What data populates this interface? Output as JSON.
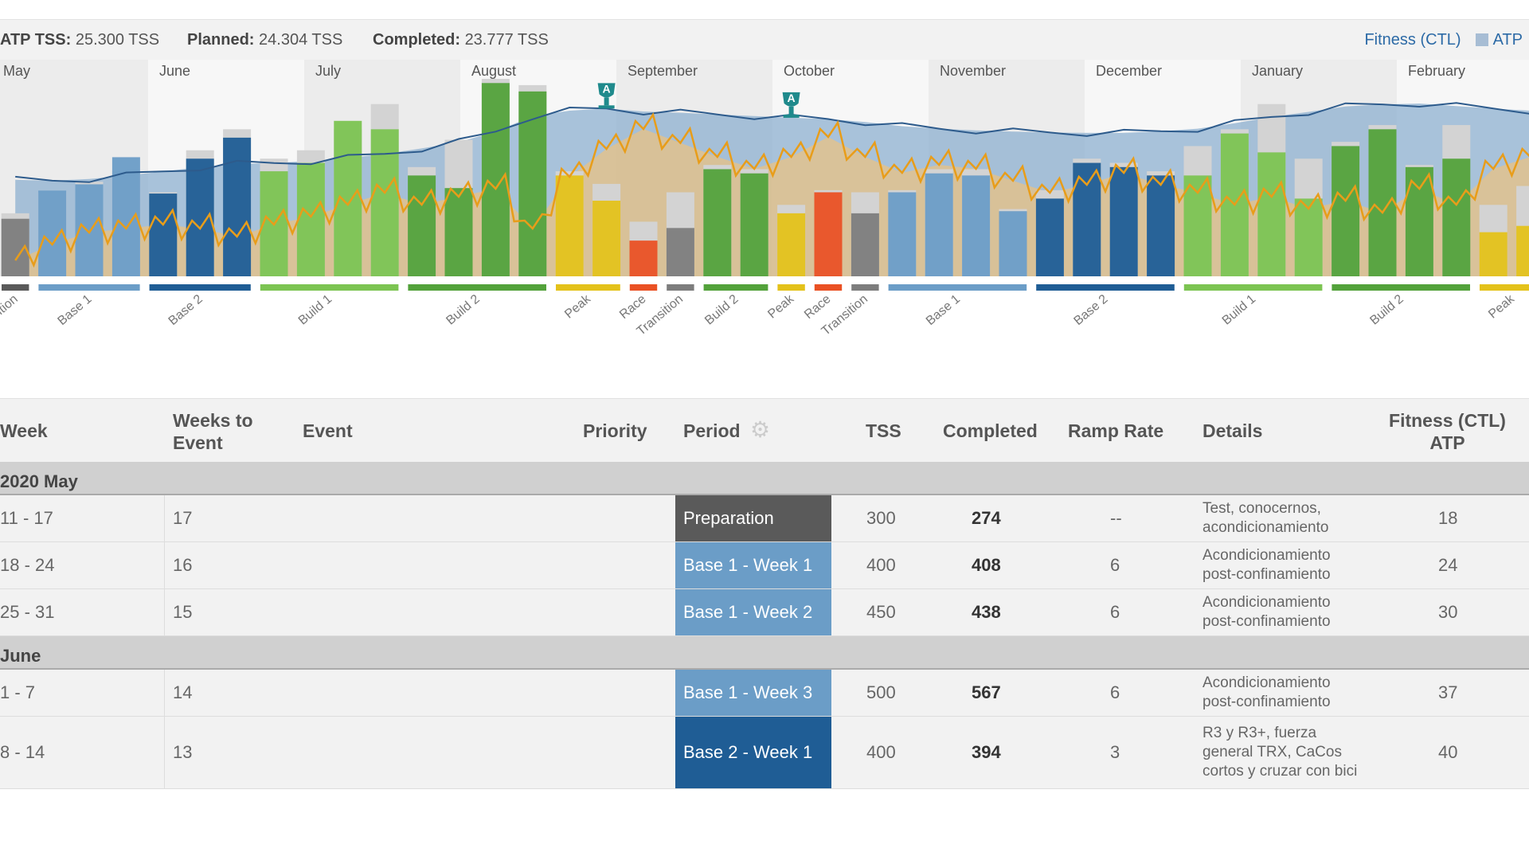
{
  "stats": {
    "atp_label": "ATP TSS:",
    "atp_value": "25.300 TSS",
    "planned_label": "Planned:",
    "planned_value": "24.304 TSS",
    "completed_label": "Completed:",
    "completed_value": "23.777 TSS"
  },
  "legend": {
    "fitness": "Fitness (CTL)",
    "atp": "ATP"
  },
  "colors": {
    "base1": "#6b9dc7",
    "base2": "#1f5d95",
    "build1": "#7cc452",
    "build2": "#53a23b",
    "peak": "#e4c21a",
    "race": "#ea5124",
    "transition": "#7d7d7d",
    "preparation": "#5a5a5a",
    "ctl_area": "#8db0d0",
    "form_area": "#f2c276",
    "form_line": "#e89d1a",
    "ctl_line": "#2d5b8c"
  },
  "months": [
    "May",
    "June",
    "July",
    "August",
    "September",
    "October",
    "November",
    "December",
    "January",
    "February"
  ],
  "chart_data": {
    "type": "bar",
    "weekly_tss": [
      {
        "period": "transition",
        "planned": 300,
        "completed": 274
      },
      {
        "period": "base1",
        "planned": 400,
        "completed": 408
      },
      {
        "period": "base1",
        "planned": 450,
        "completed": 438
      },
      {
        "period": "base1",
        "planned": 500,
        "completed": 567
      },
      {
        "period": "base2",
        "planned": 400,
        "completed": 394
      },
      {
        "period": "base2",
        "planned": 600,
        "completed": 560
      },
      {
        "period": "base2",
        "planned": 700,
        "completed": 660
      },
      {
        "period": "build1",
        "planned": 560,
        "completed": 500
      },
      {
        "period": "build1",
        "planned": 600,
        "completed": 540
      },
      {
        "period": "build1",
        "planned": 700,
        "completed": 740
      },
      {
        "period": "build1",
        "planned": 820,
        "completed": 700
      },
      {
        "period": "build2",
        "planned": 520,
        "completed": 480
      },
      {
        "period": "build2",
        "planned": 650,
        "completed": 420
      },
      {
        "period": "build2",
        "planned": 940,
        "completed": 920
      },
      {
        "period": "build2",
        "planned": 910,
        "completed": 880
      },
      {
        "period": "peak",
        "planned": 500,
        "completed": 480
      },
      {
        "period": "peak",
        "planned": 440,
        "completed": 360
      },
      {
        "period": "race",
        "planned": 260,
        "completed": 170
      },
      {
        "period": "transition",
        "planned": 400,
        "completed": 230
      },
      {
        "period": "build2",
        "planned": 530,
        "completed": 510
      },
      {
        "period": "build2",
        "planned": 510,
        "completed": 490
      },
      {
        "period": "peak",
        "planned": 340,
        "completed": 300
      },
      {
        "period": "race",
        "planned": 410,
        "completed": 400
      },
      {
        "period": "transition",
        "planned": 400,
        "completed": 300
      },
      {
        "period": "base1",
        "planned": 410,
        "completed": 400
      },
      {
        "period": "base1",
        "planned": 510,
        "completed": 490
      },
      {
        "period": "base1",
        "planned": 510,
        "completed": 480
      },
      {
        "period": "base1",
        "planned": 320,
        "completed": 310
      },
      {
        "period": "base2",
        "planned": 410,
        "completed": 370
      },
      {
        "period": "base2",
        "planned": 560,
        "completed": 540
      },
      {
        "period": "base2",
        "planned": 540,
        "completed": 520
      },
      {
        "period": "base2",
        "planned": 500,
        "completed": 480
      },
      {
        "period": "build1",
        "planned": 620,
        "completed": 480
      },
      {
        "period": "build1",
        "planned": 700,
        "completed": 680
      },
      {
        "period": "build1",
        "planned": 820,
        "completed": 590
      },
      {
        "period": "build1",
        "planned": 560,
        "completed": 370
      },
      {
        "period": "build2",
        "planned": 640,
        "completed": 620
      },
      {
        "period": "build2",
        "planned": 720,
        "completed": 700
      },
      {
        "period": "build2",
        "planned": 530,
        "completed": 520
      },
      {
        "period": "build2",
        "planned": 720,
        "completed": 560
      },
      {
        "period": "peak",
        "planned": 340,
        "completed": 210
      },
      {
        "period": "peak",
        "planned": 430,
        "completed": 240
      }
    ],
    "fitness_ctl": [
      230,
      228,
      232,
      240,
      250,
      260,
      268,
      270,
      275,
      282,
      292,
      305,
      320,
      345,
      382,
      395,
      400,
      393,
      390,
      386,
      382,
      378,
      375,
      368,
      358,
      352,
      348,
      345,
      343,
      342,
      342,
      346,
      352,
      365,
      380,
      392,
      405,
      410,
      412,
      406,
      400,
      395
    ],
    "form_tsb": [
      -200,
      -160,
      -130,
      -120,
      -110,
      -120,
      -140,
      -110,
      -90,
      -60,
      -30,
      -60,
      -40,
      -20,
      -120,
      10,
      80,
      130,
      95,
      60,
      30,
      60,
      110,
      60,
      20,
      40,
      30,
      0,
      -30,
      -10,
      20,
      -10,
      -30,
      -60,
      -40,
      -70,
      -50,
      -80,
      -20,
      -60,
      30,
      60
    ],
    "ctl_min": 0,
    "ctl_max": 450,
    "race_weeks": [
      16,
      21
    ],
    "tss_ylim": [
      0,
      1050
    ]
  },
  "phases": [
    {
      "label": "Transition",
      "color": "preparation",
      "start": 0,
      "end": 1
    },
    {
      "label": "Base 1",
      "color": "base1",
      "start": 1,
      "end": 4
    },
    {
      "label": "Base 2",
      "color": "base2",
      "start": 4,
      "end": 7
    },
    {
      "label": "Build 1",
      "color": "build1",
      "start": 7,
      "end": 11
    },
    {
      "label": "Build 2",
      "color": "build2",
      "start": 11,
      "end": 15
    },
    {
      "label": "Peak",
      "color": "peak",
      "start": 15,
      "end": 17
    },
    {
      "label": "Race",
      "color": "race",
      "start": 17,
      "end": 18
    },
    {
      "label": "Transition",
      "color": "transition",
      "start": 18,
      "end": 19
    },
    {
      "label": "Build 2",
      "color": "build2",
      "start": 19,
      "end": 21
    },
    {
      "label": "Peak",
      "color": "peak",
      "start": 21,
      "end": 22
    },
    {
      "label": "Race",
      "color": "race",
      "start": 22,
      "end": 23
    },
    {
      "label": "Transition",
      "color": "transition",
      "start": 23,
      "end": 24
    },
    {
      "label": "Base 1",
      "color": "base1",
      "start": 24,
      "end": 28
    },
    {
      "label": "Base 2",
      "color": "base2",
      "start": 28,
      "end": 32
    },
    {
      "label": "Build 1",
      "color": "build1",
      "start": 32,
      "end": 36
    },
    {
      "label": "Build 2",
      "color": "build2",
      "start": 36,
      "end": 40
    },
    {
      "label": "Peak",
      "color": "peak",
      "start": 40,
      "end": 42
    }
  ],
  "race_marker_label": "A",
  "table": {
    "headers": {
      "week": "Week",
      "weeks_to_event": "Weeks to Event",
      "event": "Event",
      "priority": "Priority",
      "period": "Period",
      "tss": "TSS",
      "completed": "Completed",
      "ramp_rate": "Ramp Rate",
      "details": "Details",
      "fitness": "Fitness (CTL) ATP"
    },
    "groups": [
      {
        "label": "2020 May",
        "rows": [
          {
            "week": "11 - 17",
            "weeks_to_event": "17",
            "period": "Preparation",
            "period_color": "preparation",
            "tss": "300",
            "completed": "274",
            "ramp": "--",
            "details": "Test, conocernos, acondicionamiento",
            "fitness": "18"
          },
          {
            "week": "18 - 24",
            "weeks_to_event": "16",
            "period": "Base 1 - Week 1",
            "period_color": "base1",
            "tss": "400",
            "completed": "408",
            "ramp": "6",
            "details": "Acondicionamiento post-confinamiento",
            "fitness": "24"
          },
          {
            "week": "25 - 31",
            "weeks_to_event": "15",
            "period": "Base 1 - Week 2",
            "period_color": "base1",
            "tss": "450",
            "completed": "438",
            "ramp": "6",
            "details": "Acondicionamiento post-confinamiento",
            "fitness": "30"
          }
        ]
      },
      {
        "label": "June",
        "rows": [
          {
            "week": "1 - 7",
            "weeks_to_event": "14",
            "period": "Base 1 - Week 3",
            "period_color": "base1",
            "tss": "500",
            "completed": "567",
            "ramp": "6",
            "details": "Acondicionamiento post-confinamiento",
            "fitness": "37"
          },
          {
            "week": "8 - 14",
            "weeks_to_event": "13",
            "period": "Base 2 - Week 1",
            "period_color": "base2",
            "tss": "400",
            "completed": "394",
            "ramp": "3",
            "details": "R3 y R3+, fuerza general TRX, CaCos cortos y cruzar con bici",
            "fitness": "40"
          }
        ]
      }
    ]
  }
}
